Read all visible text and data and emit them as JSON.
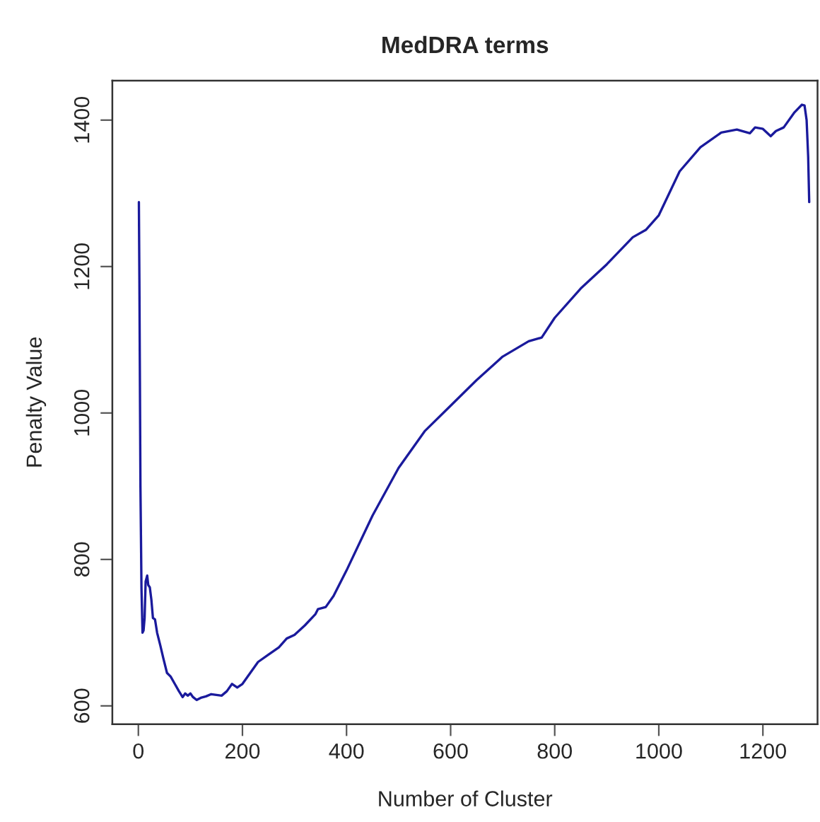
{
  "chart_data": {
    "type": "line",
    "title": "MedDRA terms",
    "xlabel": "Number of Cluster",
    "ylabel": "Penalty Value",
    "xlim": [
      -50,
      1305
    ],
    "ylim": [
      575,
      1454
    ],
    "xticks": [
      0,
      200,
      400,
      600,
      800,
      1000,
      1200
    ],
    "yticks": [
      600,
      800,
      1000,
      1200,
      1400
    ],
    "grid": false,
    "legend": false,
    "series": [
      {
        "color": "#1a1a9c",
        "x": [
          1,
          2,
          4,
          6,
          8,
          10,
          12,
          14,
          17,
          19,
          22,
          25,
          28,
          32,
          36,
          42,
          48,
          55,
          62,
          70,
          78,
          85,
          90,
          95,
          100,
          105,
          112,
          120,
          130,
          140,
          150,
          160,
          170,
          180,
          190,
          200,
          215,
          230,
          250,
          270,
          285,
          300,
          320,
          340,
          345,
          360,
          375,
          400,
          450,
          500,
          550,
          600,
          650,
          700,
          750,
          775,
          800,
          850,
          900,
          950,
          975,
          1000,
          1040,
          1080,
          1120,
          1150,
          1175,
          1185,
          1200,
          1215,
          1225,
          1240,
          1260,
          1275,
          1280,
          1284,
          1287,
          1289
        ],
        "values": [
          1288,
          1180,
          900,
          760,
          700,
          703,
          720,
          770,
          778,
          765,
          762,
          745,
          720,
          718,
          700,
          683,
          665,
          645,
          640,
          630,
          620,
          612,
          617,
          614,
          617,
          612,
          608,
          611,
          613,
          616,
          615,
          614,
          620,
          630,
          625,
          630,
          645,
          660,
          670,
          680,
          692,
          697,
          710,
          725,
          732,
          735,
          750,
          785,
          860,
          925,
          975,
          1010,
          1045,
          1077,
          1098,
          1103,
          1130,
          1170,
          1203,
          1240,
          1250,
          1270,
          1330,
          1363,
          1383,
          1387,
          1382,
          1390,
          1388,
          1378,
          1385,
          1390,
          1410,
          1421,
          1420,
          1400,
          1350,
          1288
        ]
      }
    ]
  }
}
